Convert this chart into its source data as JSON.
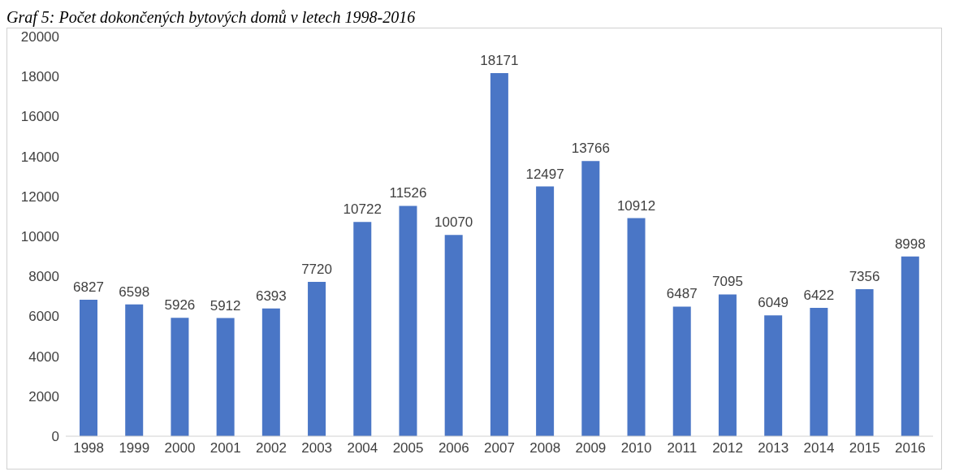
{
  "chart_data": {
    "type": "bar",
    "title": "Graf 5: Počet dokončených bytových domů v letech 1998-2016",
    "categories": [
      "1998",
      "1999",
      "2000",
      "2001",
      "2002",
      "2003",
      "2004",
      "2005",
      "2006",
      "2007",
      "2008",
      "2009",
      "2010",
      "2011",
      "2012",
      "2013",
      "2014",
      "2015",
      "2016"
    ],
    "values": [
      6827,
      6598,
      5926,
      5912,
      6393,
      7720,
      10722,
      11526,
      10070,
      18171,
      12497,
      13766,
      10912,
      6487,
      7095,
      6049,
      6422,
      7356,
      8998
    ],
    "color": "#4a76c6",
    "ylim": [
      0,
      20000
    ],
    "yticks": [
      0,
      2000,
      4000,
      6000,
      8000,
      10000,
      12000,
      14000,
      16000,
      18000,
      20000
    ],
    "grid": false,
    "data_labels": true
  }
}
